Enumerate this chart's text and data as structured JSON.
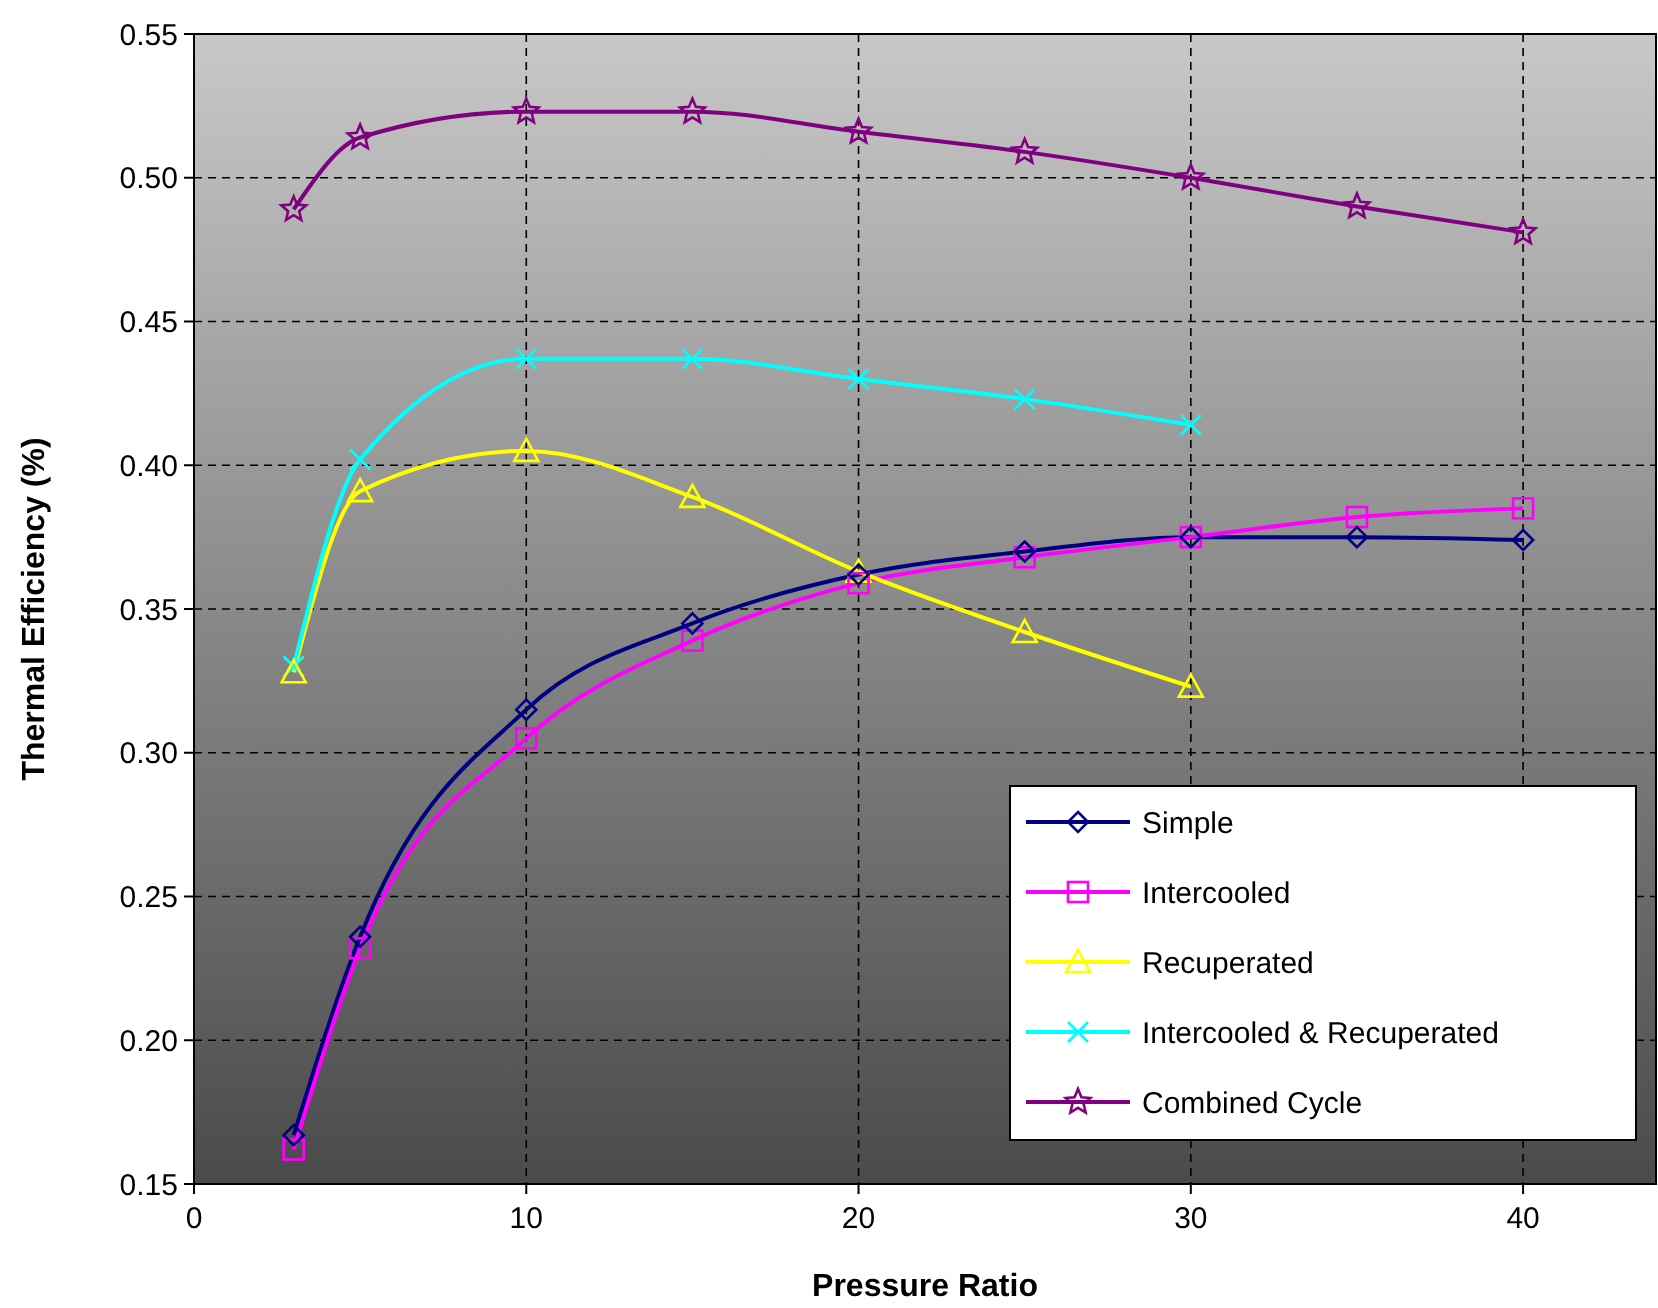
{
  "chart_data": {
    "type": "line",
    "xlabel": "Pressure Ratio",
    "ylabel": "Thermal Efficiency (%)",
    "xlim": [
      0,
      44
    ],
    "xticks": [
      0,
      10,
      20,
      30,
      40
    ],
    "ylim": [
      0.15,
      0.55
    ],
    "yticks": [
      {
        "value": 0.15,
        "label": "0.15"
      },
      {
        "value": 0.2,
        "label": "0.20"
      },
      {
        "value": 0.25,
        "label": "0.25"
      },
      {
        "value": 0.3,
        "label": "0.30"
      },
      {
        "value": 0.35,
        "label": "0.35"
      },
      {
        "value": 0.4,
        "label": "0.40"
      },
      {
        "value": 0.45,
        "label": "0.45"
      },
      {
        "value": 0.5,
        "label": "0.50"
      },
      {
        "value": 0.55,
        "label": "0.55"
      }
    ],
    "grid": true,
    "legend": "bottom right",
    "line_style": "solid",
    "series": [
      {
        "name": "Simple",
        "color": "#000080",
        "marker": "diamond",
        "x": [
          3,
          5,
          10,
          15,
          20,
          25,
          30,
          35,
          40
        ],
        "values": [
          0.167,
          0.236,
          0.315,
          0.345,
          0.362,
          0.37,
          0.375,
          0.375,
          0.374
        ]
      },
      {
        "name": "Intercooled",
        "color": "#ff00ff",
        "marker": "square",
        "x": [
          3,
          5,
          10,
          15,
          20,
          25,
          30,
          35,
          40
        ],
        "values": [
          0.162,
          0.232,
          0.305,
          0.339,
          0.359,
          0.368,
          0.375,
          0.382,
          0.385
        ]
      },
      {
        "name": "Recuperated",
        "color": "#ffff00",
        "marker": "triangle",
        "x": [
          3,
          5,
          10,
          15,
          20,
          25,
          30
        ],
        "values": [
          0.328,
          0.391,
          0.405,
          0.389,
          0.363,
          0.342,
          0.323
        ]
      },
      {
        "name": "Intercooled & Recuperated",
        "color": "#00ffff",
        "marker": "cross",
        "x": [
          3,
          5,
          10,
          15,
          20,
          25,
          30
        ],
        "values": [
          0.33,
          0.402,
          0.437,
          0.437,
          0.43,
          0.423,
          0.414
        ]
      },
      {
        "name": "Combined Cycle",
        "color": "#800080",
        "marker": "star",
        "x": [
          3,
          5,
          10,
          15,
          20,
          25,
          30,
          35,
          40
        ],
        "values": [
          0.489,
          0.514,
          0.523,
          0.523,
          0.516,
          0.509,
          0.5,
          0.49,
          0.481
        ]
      }
    ]
  }
}
